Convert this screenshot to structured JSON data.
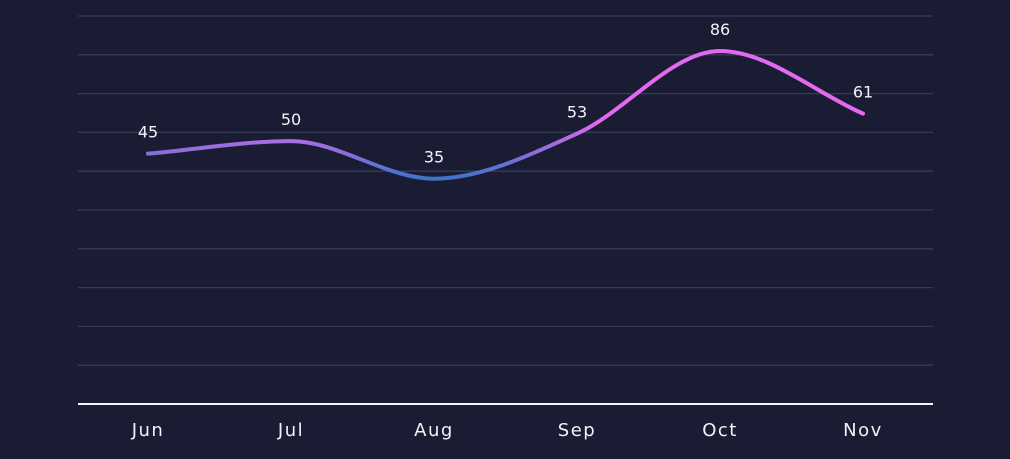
{
  "chart_data": {
    "type": "line",
    "categories": [
      "Jun",
      "Jul",
      "Aug",
      "Sep",
      "Oct",
      "Nov"
    ],
    "values": [
      45,
      50,
      35,
      53,
      86,
      61
    ],
    "ylim": [
      -55,
      100
    ],
    "grid": "horizontal",
    "smooth": true,
    "colors": {
      "background": "#1a1c33",
      "grid": "#363a55",
      "axis": "#f4f4f8",
      "line_low": "#3f72c9",
      "line_high": "#e26af0",
      "text": "#f2f2f7"
    }
  }
}
